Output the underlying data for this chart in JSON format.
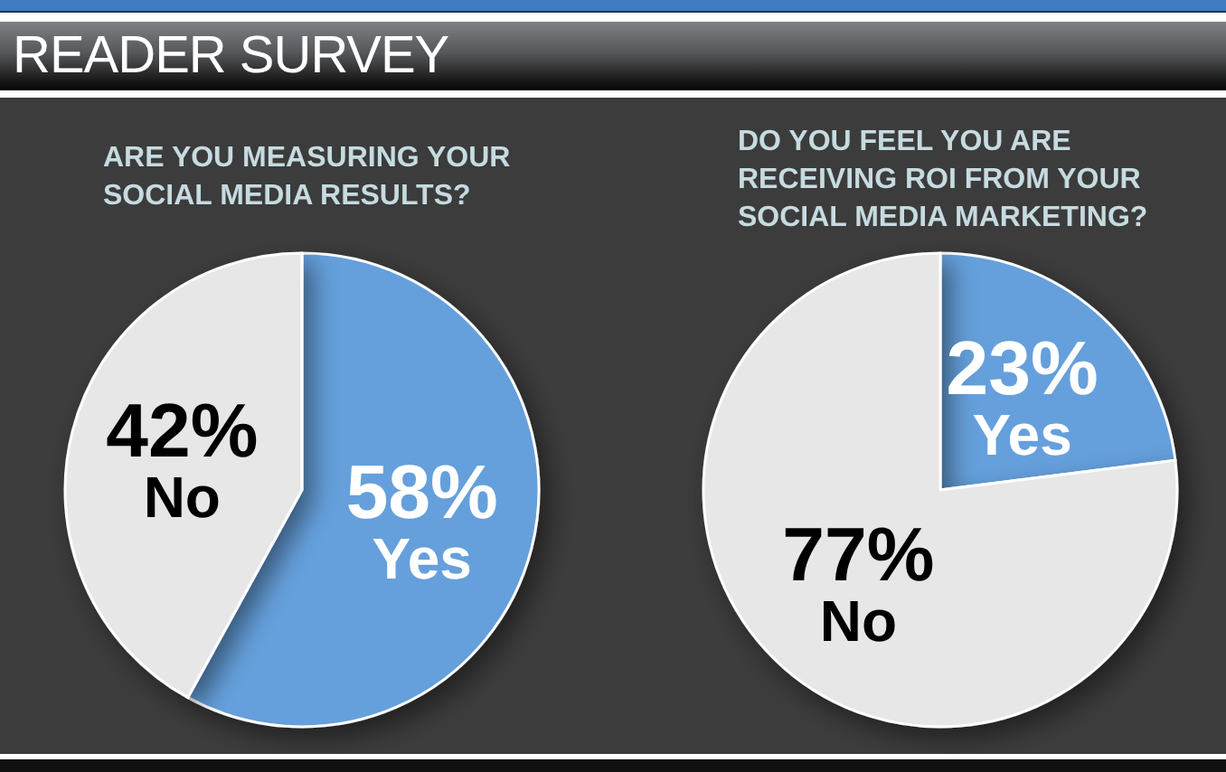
{
  "chart_data": [
    {
      "type": "other",
      "title": "READER SURVEY"
    },
    {
      "type": "pie",
      "title": "ARE YOU MEASURING YOUR SOCIAL MEDIA RESULTS?",
      "categories": [
        "Yes",
        "No"
      ],
      "values": [
        58,
        42
      ],
      "colors": [
        "#65a0dc",
        "#e7e7e7"
      ],
      "value_labels": [
        "58%",
        "42%"
      ]
    },
    {
      "type": "pie",
      "title": "DO YOU FEEL YOU ARE RECEIVING ROI FROM YOUR SOCIAL MEDIA MARKETING?",
      "categories": [
        "Yes",
        "No"
      ],
      "values": [
        23,
        77
      ],
      "colors": [
        "#65a0dc",
        "#e7e7e7"
      ],
      "value_labels": [
        "23%",
        "77%"
      ]
    }
  ]
}
